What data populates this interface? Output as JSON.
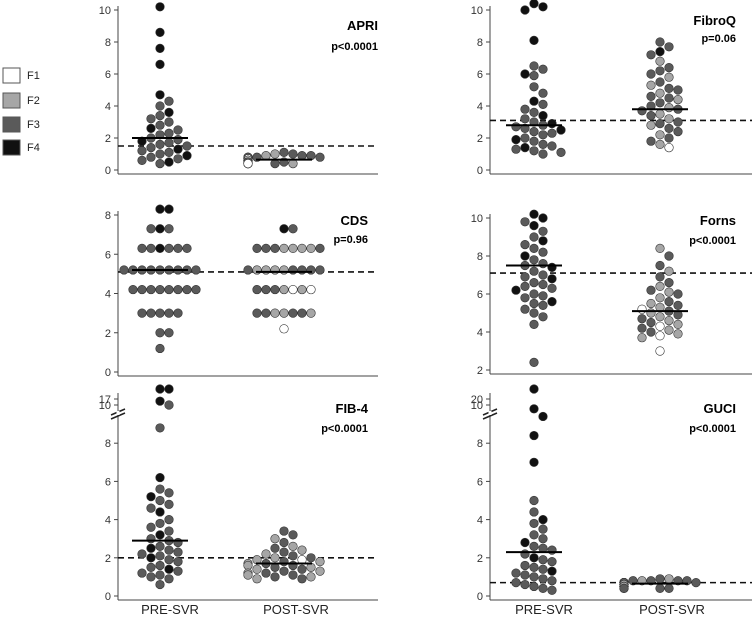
{
  "legend": [
    {
      "label": "F1",
      "color": "#ffffff"
    },
    {
      "label": "F2",
      "color": "#a6a6a6"
    },
    {
      "label": "F3",
      "color": "#5a5a5a"
    },
    {
      "label": "F4",
      "color": "#111111"
    }
  ],
  "x_categories": [
    "PRE-SVR",
    "POST-SVR"
  ],
  "chart_data": [
    {
      "type": "scatter",
      "title": "APRI",
      "pvalue": "p<0.0001",
      "ylim": [
        0,
        10
      ],
      "yticks": [
        "0",
        "2",
        "4",
        "6",
        "8",
        "10"
      ],
      "ytick_values": [
        0,
        2,
        4,
        6,
        8,
        10
      ],
      "cutoff": 1.5,
      "categories": [
        "PRE-SVR",
        "POST-SVR"
      ],
      "medians": [
        2.0,
        0.65
      ],
      "series": [
        {
          "category": "PRE-SVR",
          "values": [
            10.2,
            8.6,
            7.6,
            6.6,
            4.7,
            4.3,
            4.0,
            3.6,
            3.4,
            3.2,
            3.0,
            2.8,
            2.6,
            2.5,
            2.3,
            2.2,
            2.0,
            1.9,
            1.8,
            1.7,
            1.6,
            1.5,
            1.4,
            1.3,
            1.2,
            1.1,
            1.0,
            0.9,
            0.8,
            0.7,
            0.6,
            0.5,
            0.4
          ],
          "stage": [
            4,
            4,
            4,
            4,
            4,
            3,
            3,
            4,
            3,
            3,
            3,
            3,
            4,
            3,
            3,
            3,
            3,
            3,
            4,
            3,
            3,
            3,
            3,
            4,
            3,
            3,
            3,
            4,
            3,
            3,
            3,
            4,
            3
          ]
        },
        {
          "category": "POST-SVR",
          "values": [
            1.1,
            1.0,
            1.0,
            0.9,
            0.9,
            0.9,
            0.8,
            0.8,
            0.8,
            0.8,
            0.7,
            0.7,
            0.7,
            0.7,
            0.7,
            0.6,
            0.6,
            0.6,
            0.6,
            0.6,
            0.6,
            0.5,
            0.5,
            0.5,
            0.5,
            0.5,
            0.5,
            0.5,
            0.4,
            0.4,
            0.4,
            0.4,
            0.4
          ],
          "stage": [
            3,
            3,
            2,
            3,
            2,
            3,
            3,
            3,
            2,
            3,
            2,
            3,
            2,
            3,
            1,
            2,
            3,
            3,
            2,
            3,
            1,
            3,
            2,
            3,
            3,
            1,
            2,
            3,
            2,
            3,
            3,
            2,
            1
          ]
        }
      ]
    },
    {
      "type": "scatter",
      "title": "FibroQ",
      "pvalue": "p=0.06",
      "ylim": [
        0,
        10
      ],
      "yticks": [
        "0",
        "2",
        "4",
        "6",
        "8",
        "10"
      ],
      "ytick_values": [
        0,
        2,
        4,
        6,
        8,
        10
      ],
      "cutoff": 3.1,
      "categories": [
        "PRE-SVR",
        "POST-SVR"
      ],
      "medians": [
        2.8,
        3.8
      ],
      "series": [
        {
          "category": "PRE-SVR",
          "values": [
            10.4,
            10.2,
            10.0,
            8.1,
            6.5,
            6.3,
            6.0,
            5.9,
            5.2,
            4.8,
            4.3,
            4.1,
            3.8,
            3.6,
            3.4,
            3.2,
            3.0,
            2.9,
            2.8,
            2.7,
            2.6,
            2.5,
            2.4,
            2.3,
            2.2,
            2.0,
            1.9,
            1.8,
            1.6,
            1.5,
            1.4,
            1.3,
            1.2,
            1.1,
            1.0
          ],
          "stage": [
            4,
            4,
            4,
            4,
            3,
            3,
            4,
            3,
            3,
            3,
            4,
            3,
            3,
            3,
            4,
            3,
            3,
            4,
            3,
            3,
            3,
            4,
            3,
            3,
            3,
            3,
            4,
            3,
            3,
            3,
            4,
            3,
            3,
            3,
            3
          ]
        },
        {
          "category": "POST-SVR",
          "values": [
            8.0,
            7.7,
            7.4,
            7.2,
            6.8,
            6.4,
            6.2,
            6.0,
            5.8,
            5.5,
            5.3,
            5.1,
            5.0,
            4.8,
            4.6,
            4.5,
            4.4,
            4.2,
            4.0,
            3.9,
            3.8,
            3.7,
            3.5,
            3.4,
            3.2,
            3.0,
            2.9,
            2.8,
            2.6,
            2.4,
            2.2,
            2.0,
            1.8,
            1.6,
            1.4
          ],
          "stage": [
            3,
            3,
            4,
            3,
            2,
            3,
            3,
            3,
            2,
            3,
            2,
            3,
            3,
            2,
            3,
            3,
            2,
            3,
            3,
            2,
            3,
            3,
            2,
            3,
            2,
            3,
            3,
            2,
            3,
            3,
            2,
            3,
            3,
            2,
            1
          ]
        }
      ]
    },
    {
      "type": "scatter",
      "title": "CDS",
      "pvalue": "p=0.96",
      "ylim": [
        0,
        8
      ],
      "yticks": [
        "0",
        "2",
        "4",
        "6",
        "8"
      ],
      "ytick_values": [
        0,
        2,
        4,
        6,
        8
      ],
      "cutoff": 5.1,
      "categories": [
        "PRE-SVR",
        "POST-SVR"
      ],
      "medians": [
        5.2,
        5.1
      ],
      "series": [
        {
          "category": "PRE-SVR",
          "values": [
            8.3,
            8.3,
            7.3,
            7.3,
            7.3,
            6.3,
            6.3,
            6.3,
            6.3,
            6.3,
            6.3,
            5.2,
            5.2,
            5.2,
            5.2,
            5.2,
            5.2,
            5.2,
            5.2,
            5.2,
            4.2,
            4.2,
            4.2,
            4.2,
            4.2,
            4.2,
            4.2,
            4.2,
            3.0,
            3.0,
            3.0,
            3.0,
            3.0,
            2.0,
            2.0,
            1.2
          ],
          "stage": [
            4,
            4,
            4,
            3,
            3,
            4,
            3,
            3,
            3,
            3,
            3,
            3,
            3,
            3,
            3,
            3,
            3,
            3,
            3,
            3,
            3,
            3,
            3,
            3,
            3,
            3,
            3,
            3,
            3,
            3,
            3,
            3,
            3,
            3,
            3,
            3
          ]
        },
        {
          "category": "POST-SVR",
          "values": [
            7.3,
            7.3,
            6.3,
            6.3,
            6.3,
            6.3,
            6.3,
            6.3,
            6.3,
            6.3,
            5.2,
            5.2,
            5.2,
            5.2,
            5.2,
            5.2,
            5.2,
            5.2,
            5.2,
            4.2,
            4.2,
            4.2,
            4.2,
            4.2,
            4.2,
            4.2,
            3.0,
            3.0,
            3.0,
            3.0,
            3.0,
            3.0,
            3.0,
            2.2
          ],
          "stage": [
            4,
            3,
            2,
            2,
            3,
            2,
            3,
            2,
            3,
            3,
            2,
            3,
            2,
            3,
            2,
            3,
            2,
            3,
            3,
            2,
            1,
            3,
            2,
            3,
            1,
            3,
            2,
            3,
            2,
            3,
            3,
            2,
            3,
            1
          ]
        }
      ]
    },
    {
      "type": "scatter",
      "title": "Forns",
      "pvalue": "p<0.0001",
      "ylim": [
        2,
        10
      ],
      "yticks": [
        "2",
        "4",
        "6",
        "8",
        "10"
      ],
      "ytick_values": [
        2,
        4,
        6,
        8,
        10
      ],
      "cutoff": 7.1,
      "categories": [
        "PRE-SVR",
        "POST-SVR"
      ],
      "medians": [
        7.5,
        5.1
      ],
      "series": [
        {
          "category": "PRE-SVR",
          "values": [
            10.2,
            10.0,
            9.8,
            9.6,
            9.3,
            9.0,
            8.8,
            8.6,
            8.4,
            8.2,
            8.0,
            7.8,
            7.6,
            7.5,
            7.4,
            7.2,
            7.0,
            6.9,
            6.8,
            6.6,
            6.5,
            6.4,
            6.3,
            6.2,
            6.0,
            5.9,
            5.8,
            5.6,
            5.5,
            5.4,
            5.2,
            5.0,
            4.8,
            4.4,
            2.4
          ],
          "stage": [
            4,
            4,
            3,
            4,
            3,
            3,
            4,
            3,
            3,
            3,
            4,
            3,
            3,
            3,
            4,
            3,
            3,
            3,
            4,
            3,
            3,
            3,
            3,
            4,
            3,
            3,
            3,
            4,
            3,
            3,
            3,
            3,
            3,
            3,
            3
          ]
        },
        {
          "category": "POST-SVR",
          "values": [
            8.4,
            8.0,
            7.5,
            7.2,
            6.9,
            6.6,
            6.4,
            6.2,
            6.1,
            6.0,
            5.8,
            5.6,
            5.5,
            5.4,
            5.3,
            5.2,
            5.1,
            5.0,
            4.9,
            4.8,
            4.7,
            4.6,
            4.5,
            4.4,
            4.3,
            4.2,
            4.1,
            4.0,
            3.9,
            3.8,
            3.7,
            3.0
          ],
          "stage": [
            2,
            3,
            3,
            2,
            3,
            3,
            2,
            3,
            2,
            3,
            2,
            3,
            2,
            3,
            2,
            1,
            3,
            2,
            3,
            2,
            3,
            2,
            3,
            2,
            1,
            3,
            2,
            3,
            2,
            1,
            2,
            1
          ]
        }
      ]
    },
    {
      "type": "scatter",
      "title": "FIB-4",
      "pvalue": "p<0.0001",
      "ylim": [
        0,
        10
      ],
      "yticks": [
        "0",
        "2",
        "4",
        "6",
        "8",
        "10",
        "17"
      ],
      "ytick_values": [
        0,
        2,
        4,
        6,
        8,
        10,
        17
      ],
      "axis_break": [
        10.5,
        16
      ],
      "cutoff": 2.0,
      "categories": [
        "PRE-SVR",
        "POST-SVR"
      ],
      "medians": [
        2.9,
        1.7
      ],
      "series": [
        {
          "category": "PRE-SVR",
          "values": [
            16.2,
            16.0,
            10.2,
            10.0,
            8.8,
            6.2,
            5.6,
            5.4,
            5.2,
            5.0,
            4.8,
            4.6,
            4.4,
            4.0,
            3.8,
            3.6,
            3.4,
            3.2,
            3.0,
            2.9,
            2.8,
            2.6,
            2.5,
            2.4,
            2.3,
            2.2,
            2.1,
            2.0,
            1.9,
            1.8,
            1.6,
            1.5,
            1.4,
            1.3,
            1.2,
            1.1,
            1.0,
            0.9,
            0.6
          ],
          "stage": [
            4,
            4,
            4,
            3,
            3,
            4,
            3,
            3,
            4,
            3,
            3,
            3,
            4,
            3,
            3,
            3,
            3,
            4,
            3,
            3,
            3,
            3,
            4,
            3,
            3,
            3,
            3,
            4,
            3,
            3,
            3,
            3,
            4,
            3,
            3,
            3,
            3,
            3,
            3
          ]
        },
        {
          "category": "POST-SVR",
          "values": [
            3.4,
            3.2,
            3.0,
            2.8,
            2.6,
            2.5,
            2.4,
            2.3,
            2.2,
            2.1,
            2.0,
            2.0,
            1.9,
            1.9,
            1.8,
            1.8,
            1.7,
            1.7,
            1.6,
            1.6,
            1.5,
            1.5,
            1.4,
            1.4,
            1.3,
            1.3,
            1.2,
            1.2,
            1.1,
            1.1,
            1.0,
            1.0,
            0.9,
            0.9
          ],
          "stage": [
            3,
            3,
            2,
            3,
            2,
            3,
            2,
            3,
            2,
            3,
            2,
            3,
            1,
            2,
            3,
            2,
            3,
            2,
            3,
            2,
            3,
            2,
            3,
            2,
            3,
            2,
            3,
            2,
            3,
            2,
            3,
            2,
            3,
            2
          ]
        }
      ]
    },
    {
      "type": "scatter",
      "title": "GUCI",
      "pvalue": "p<0.0001",
      "ylim": [
        0,
        10
      ],
      "yticks": [
        "0",
        "2",
        "4",
        "6",
        "8",
        "10",
        "20"
      ],
      "ytick_values": [
        0,
        2,
        4,
        6,
        8,
        10,
        20
      ],
      "axis_break": [
        10.5,
        19
      ],
      "cutoff": 0.7,
      "categories": [
        "PRE-SVR",
        "POST-SVR"
      ],
      "medians": [
        2.3,
        0.65
      ],
      "series": [
        {
          "category": "PRE-SVR",
          "values": [
            19.3,
            9.8,
            9.4,
            8.4,
            7.0,
            5.0,
            4.4,
            4.0,
            3.8,
            3.5,
            3.2,
            3.0,
            2.8,
            2.6,
            2.5,
            2.4,
            2.2,
            2.0,
            1.9,
            1.8,
            1.6,
            1.5,
            1.4,
            1.3,
            1.2,
            1.1,
            1.0,
            0.9,
            0.8,
            0.7,
            0.6,
            0.5,
            0.4,
            0.3
          ],
          "stage": [
            4,
            4,
            4,
            4,
            4,
            3,
            3,
            4,
            3,
            3,
            3,
            3,
            4,
            3,
            3,
            3,
            3,
            4,
            3,
            3,
            3,
            3,
            3,
            4,
            3,
            3,
            3,
            3,
            3,
            3,
            3,
            3,
            3,
            3
          ]
        },
        {
          "category": "POST-SVR",
          "values": [
            0.9,
            0.9,
            0.8,
            0.8,
            0.8,
            0.8,
            0.8,
            0.7,
            0.7,
            0.7,
            0.7,
            0.7,
            0.7,
            0.7,
            0.6,
            0.6,
            0.6,
            0.6,
            0.6,
            0.6,
            0.6,
            0.5,
            0.5,
            0.5,
            0.5,
            0.5,
            0.5,
            0.5,
            0.4,
            0.4,
            0.4,
            0.4
          ],
          "stage": [
            3,
            2,
            3,
            3,
            2,
            3,
            3,
            3,
            2,
            3,
            3,
            2,
            3,
            3,
            2,
            3,
            3,
            2,
            3,
            3,
            2,
            3,
            3,
            2,
            3,
            1,
            3,
            2,
            3,
            3,
            2,
            3
          ]
        }
      ]
    }
  ]
}
